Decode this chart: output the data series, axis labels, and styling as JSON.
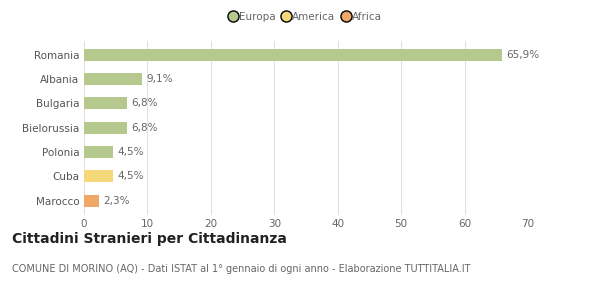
{
  "categories": [
    "Romania",
    "Albania",
    "Bulgaria",
    "Bielorussia",
    "Polonia",
    "Cuba",
    "Marocco"
  ],
  "values": [
    65.9,
    9.1,
    6.8,
    6.8,
    4.5,
    4.5,
    2.3
  ],
  "labels": [
    "65,9%",
    "9,1%",
    "6,8%",
    "6,8%",
    "4,5%",
    "4,5%",
    "2,3%"
  ],
  "bar_colors": [
    "#b5c98e",
    "#b5c98e",
    "#b5c98e",
    "#b5c98e",
    "#b5c98e",
    "#f5d87a",
    "#f0a868"
  ],
  "legend_labels": [
    "Europa",
    "America",
    "Africa"
  ],
  "legend_colors": [
    "#b5c98e",
    "#f5d87a",
    "#f0a868"
  ],
  "xlim": [
    0,
    70
  ],
  "xticks": [
    0,
    10,
    20,
    30,
    40,
    50,
    60,
    70
  ],
  "title": "Cittadini Stranieri per Cittadinanza",
  "subtitle": "COMUNE DI MORINO (AQ) - Dati ISTAT al 1° gennaio di ogni anno - Elaborazione TUTTITALIA.IT",
  "background_color": "#ffffff",
  "grid_color": "#e0e0e0",
  "bar_height": 0.5,
  "label_fontsize": 7.5,
  "title_fontsize": 10,
  "subtitle_fontsize": 7,
  "tick_fontsize": 7.5,
  "ytick_fontsize": 7.5
}
